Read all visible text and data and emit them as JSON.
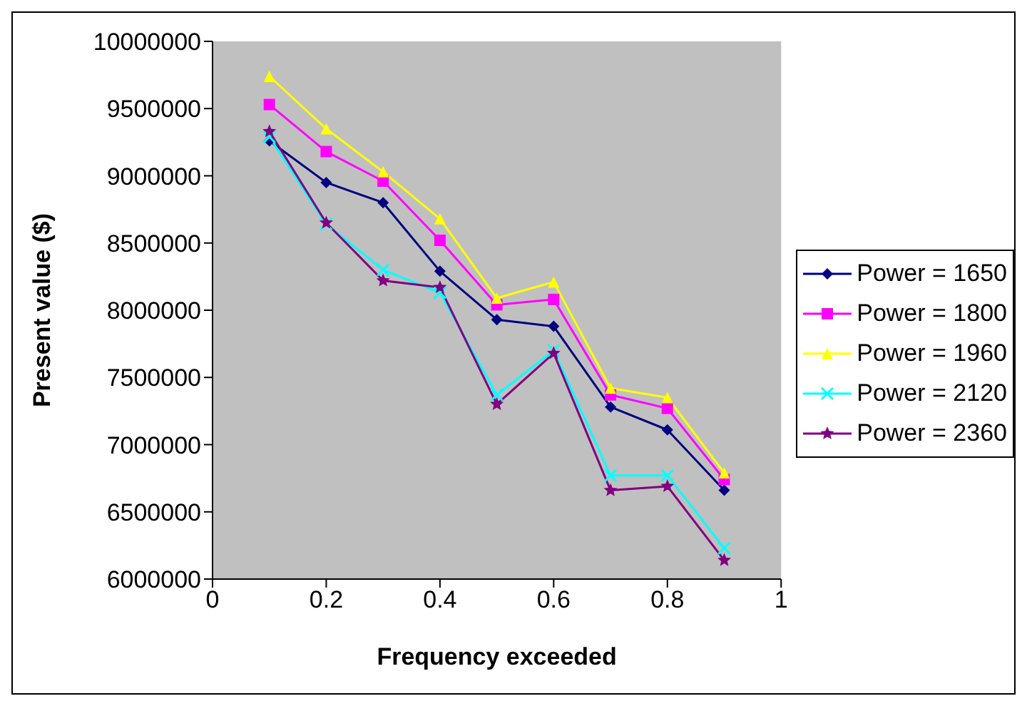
{
  "chart_data": {
    "type": "line",
    "xlabel": "Frequency exceeded",
    "ylabel": "Present value ($)",
    "x": [
      0.1,
      0.2,
      0.3,
      0.4,
      0.5,
      0.6,
      0.7,
      0.8,
      0.9
    ],
    "xlim": [
      0,
      1
    ],
    "xticks": [
      0,
      0.2,
      0.4,
      0.6,
      0.8,
      1
    ],
    "ylim": [
      6000000,
      10000000
    ],
    "yticks": [
      6000000,
      6500000,
      7000000,
      7500000,
      8000000,
      8500000,
      9000000,
      9500000,
      10000000
    ],
    "grid": false,
    "legend": "right",
    "series": [
      {
        "name": "Power = 1650",
        "color": "#000080",
        "marker": "diamond",
        "values": [
          9260000,
          8950000,
          8800000,
          8290000,
          7930000,
          7880000,
          7280000,
          7110000,
          6660000
        ]
      },
      {
        "name": "Power = 1800",
        "color": "#ff00ff",
        "marker": "square",
        "values": [
          9530000,
          9180000,
          8960000,
          8520000,
          8040000,
          8080000,
          7370000,
          7270000,
          6740000
        ]
      },
      {
        "name": "Power = 1960",
        "color": "#ffff00",
        "marker": "triangle",
        "values": [
          9740000,
          9350000,
          9030000,
          8680000,
          8090000,
          8210000,
          7420000,
          7350000,
          6790000
        ]
      },
      {
        "name": "Power = 2120",
        "color": "#00ffff",
        "marker": "cross",
        "values": [
          9290000,
          8640000,
          8300000,
          8130000,
          7370000,
          7700000,
          6770000,
          6770000,
          6230000
        ]
      },
      {
        "name": "Power = 2360",
        "color": "#800080",
        "marker": "star",
        "values": [
          9330000,
          8650000,
          8220000,
          8170000,
          7300000,
          7680000,
          6660000,
          6690000,
          6140000
        ]
      }
    ]
  }
}
